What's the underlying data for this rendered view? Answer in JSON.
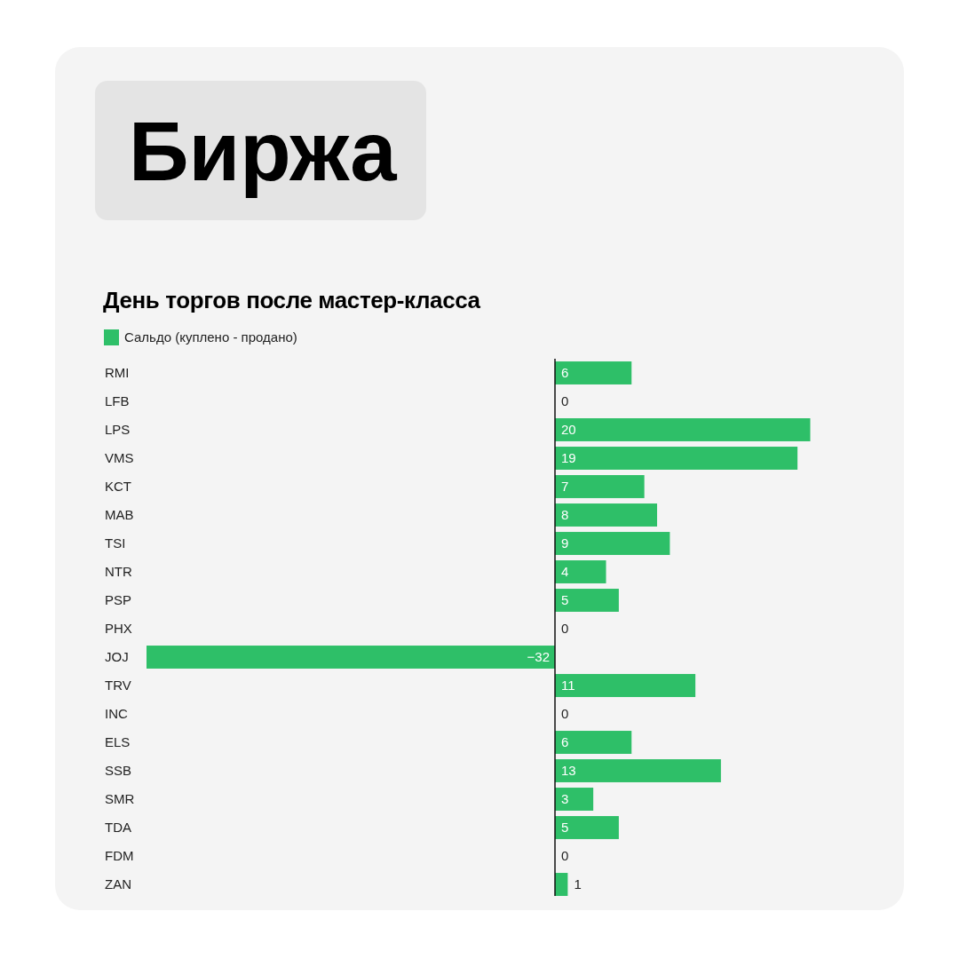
{
  "chart_data": {
    "type": "bar",
    "orientation": "horizontal",
    "title": "Биржа",
    "subtitle": "День торгов после мастер-класса",
    "categories": [
      "RMI",
      "LFB",
      "LPS",
      "VMS",
      "KCT",
      "MAB",
      "TSI",
      "NTR",
      "PSP",
      "PHX",
      "JOJ",
      "TRV",
      "INC",
      "ELS",
      "SSB",
      "SMR",
      "TDA",
      "FDM",
      "ZAN"
    ],
    "series": [
      {
        "name": "Сальдо (куплено - продано)",
        "color": "#2ebf68",
        "values": [
          6,
          0,
          20,
          19,
          7,
          8,
          9,
          4,
          5,
          0,
          -32,
          11,
          0,
          6,
          13,
          3,
          5,
          0,
          1
        ]
      }
    ],
    "data_labels": true,
    "legend": "top left",
    "tick_labels": "y"
  }
}
